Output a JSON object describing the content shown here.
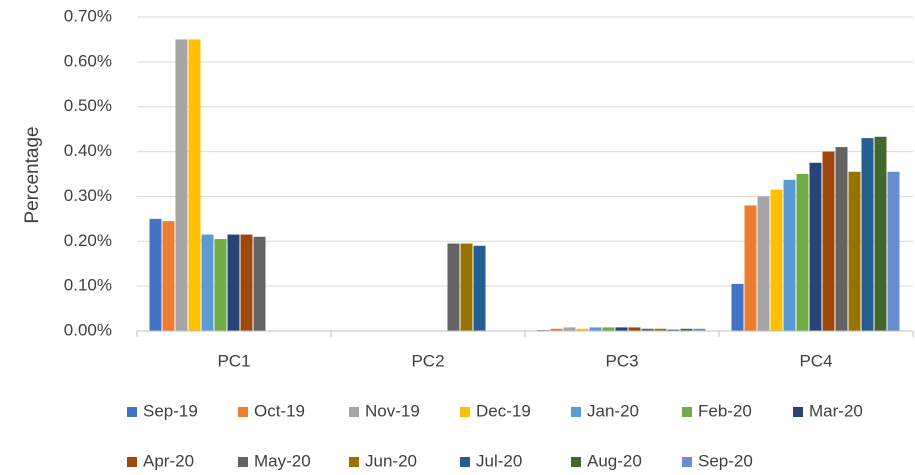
{
  "chart_data": {
    "type": "bar",
    "y_label": "Percentage",
    "categories": [
      "PC1",
      "PC2",
      "PC3",
      "PC4"
    ],
    "series": [
      {
        "name": "Sep-19",
        "color": "#4472c4",
        "values": [
          0.25,
          0,
          0.002,
          0.105
        ]
      },
      {
        "name": "Oct-19",
        "color": "#ed7d31",
        "values": [
          0.245,
          0,
          0.005,
          0.28
        ]
      },
      {
        "name": "Nov-19",
        "color": "#a5a5a5",
        "values": [
          0.65,
          0,
          0.008,
          0.3
        ]
      },
      {
        "name": "Dec-19",
        "color": "#ffc000",
        "values": [
          0.65,
          0,
          0.005,
          0.315
        ]
      },
      {
        "name": "Jan-20",
        "color": "#5b9bd5",
        "values": [
          0.215,
          0,
          0.008,
          0.337
        ]
      },
      {
        "name": "Feb-20",
        "color": "#70ad47",
        "values": [
          0.205,
          0,
          0.008,
          0.35
        ]
      },
      {
        "name": "Mar-20",
        "color": "#264478",
        "values": [
          0.215,
          0,
          0.008,
          0.375
        ]
      },
      {
        "name": "Apr-20",
        "color": "#9e480e",
        "values": [
          0.215,
          0,
          0.008,
          0.4
        ]
      },
      {
        "name": "May-20",
        "color": "#636363",
        "values": [
          0.21,
          0.195,
          0.005,
          0.41
        ]
      },
      {
        "name": "Jun-20",
        "color": "#997300",
        "values": [
          0,
          0.195,
          0.005,
          0.355
        ]
      },
      {
        "name": "Jul-20",
        "color": "#255e91",
        "values": [
          0,
          0.19,
          0.003,
          0.43
        ]
      },
      {
        "name": "Aug-20",
        "color": "#43682b",
        "values": [
          0,
          0,
          0.005,
          0.433
        ]
      },
      {
        "name": "Sep-20",
        "color": "#698ed0",
        "values": [
          0,
          0,
          0.005,
          0.355
        ]
      }
    ],
    "ylim": [
      0,
      0.7
    ],
    "yticks": [
      {
        "value": 0,
        "label": "0.00%"
      },
      {
        "value": 0.1,
        "label": "0.10%"
      },
      {
        "value": 0.2,
        "label": "0.20%"
      },
      {
        "value": 0.3,
        "label": "0.30%"
      },
      {
        "value": 0.4,
        "label": "0.40%"
      },
      {
        "value": 0.5,
        "label": "0.50%"
      },
      {
        "value": 0.6,
        "label": "0.60%"
      },
      {
        "value": 0.7,
        "label": "0.70%"
      }
    ],
    "grid": true,
    "legend": "bottom"
  }
}
